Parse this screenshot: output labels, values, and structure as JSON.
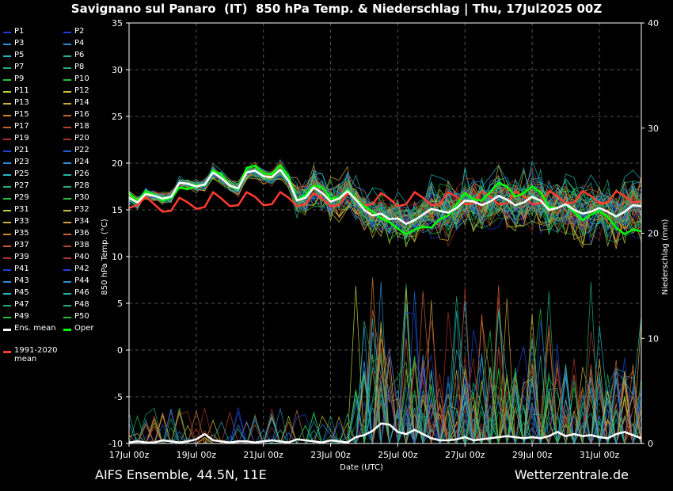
{
  "title": "Savignano sul Panaro  (IT)  850 hPa Temp. & Niederschlag | Thu, 17Jul2025 00Z",
  "footer": {
    "left": "AIFS Ensemble, 44.5N, 11E",
    "right": "Wetterzentrale.de"
  },
  "legend": {
    "members": [
      {
        "label": "P1",
        "color": "#1f3fd6"
      },
      {
        "label": "P2",
        "color": "#1f3fd6"
      },
      {
        "label": "P3",
        "color": "#2a8fd8"
      },
      {
        "label": "P4",
        "color": "#2a8fd8"
      },
      {
        "label": "P5",
        "color": "#1fb6c8"
      },
      {
        "label": "P6",
        "color": "#1fb6a0"
      },
      {
        "label": "P7",
        "color": "#1fae7a"
      },
      {
        "label": "P8",
        "color": "#1fae7a"
      },
      {
        "label": "P9",
        "color": "#1fc23a"
      },
      {
        "label": "P10",
        "color": "#1fc23a"
      },
      {
        "label": "P11",
        "color": "#b8d23a"
      },
      {
        "label": "P12",
        "color": "#d2c23a"
      },
      {
        "label": "P13",
        "color": "#d2b23a"
      },
      {
        "label": "P14",
        "color": "#d2a23a"
      },
      {
        "label": "P15",
        "color": "#d6822a"
      },
      {
        "label": "P16",
        "color": "#c8623a"
      },
      {
        "label": "P17",
        "color": "#c8622a"
      },
      {
        "label": "P18",
        "color": "#b8422a"
      },
      {
        "label": "P19",
        "color": "#a8322a"
      },
      {
        "label": "P20",
        "color": "#a8322a"
      },
      {
        "label": "P21",
        "color": "#1f3fd6"
      },
      {
        "label": "P22",
        "color": "#1f5fd6"
      },
      {
        "label": "P23",
        "color": "#2a8fd8"
      },
      {
        "label": "P24",
        "color": "#2a8fd8"
      },
      {
        "label": "P25",
        "color": "#1fb6c8"
      },
      {
        "label": "P26",
        "color": "#1fb6a0"
      },
      {
        "label": "P27",
        "color": "#1fae7a"
      },
      {
        "label": "P28",
        "color": "#1fae7a"
      },
      {
        "label": "P29",
        "color": "#1fc23a"
      },
      {
        "label": "P30",
        "color": "#1fc23a"
      },
      {
        "label": "P31",
        "color": "#b8d23a"
      },
      {
        "label": "P32",
        "color": "#d2c23a"
      },
      {
        "label": "P33",
        "color": "#d2b23a"
      },
      {
        "label": "P34",
        "color": "#d2a23a"
      },
      {
        "label": "P35",
        "color": "#d6822a"
      },
      {
        "label": "P36",
        "color": "#c8623a"
      },
      {
        "label": "P37",
        "color": "#c8622a"
      },
      {
        "label": "P38",
        "color": "#b8422a"
      },
      {
        "label": "P39",
        "color": "#a8322a"
      },
      {
        "label": "P40",
        "color": "#a8322a"
      },
      {
        "label": "P41",
        "color": "#1f3fd6"
      },
      {
        "label": "P42",
        "color": "#1f3fd6"
      },
      {
        "label": "P43",
        "color": "#2a8fd8"
      },
      {
        "label": "P44",
        "color": "#2a8fd8"
      },
      {
        "label": "P45",
        "color": "#1fb6c8"
      },
      {
        "label": "P46",
        "color": "#1fb6a0"
      },
      {
        "label": "P47",
        "color": "#1fae7a"
      },
      {
        "label": "P48",
        "color": "#1fae7a"
      },
      {
        "label": "P49",
        "color": "#1fc23a"
      },
      {
        "label": "P50",
        "color": "#1fc23a"
      }
    ],
    "ens_mean": {
      "label": "Ens. mean",
      "color": "#ffffff"
    },
    "oper": {
      "label": "Oper",
      "color": "#00ff00"
    },
    "clim": {
      "label": "1991-2020 mean",
      "color": "#ff3b30"
    }
  },
  "chart_data": {
    "type": "line",
    "xlabel": "Date (UTC)",
    "ylabel": "850 hPa Temp. (°C)",
    "y2label": "Niederschlag (mm)",
    "xlim": [
      "2025-07-17 00Z",
      "2025-08-01 06Z"
    ],
    "x_ticks": [
      "17Jul 00z",
      "19Jul 00z",
      "21Jul 00z",
      "23Jul 00z",
      "25Jul 00z",
      "27Jul 00z",
      "29Jul 00z",
      "31Jul 00z"
    ],
    "ylim": [
      -10,
      35
    ],
    "y_ticks": [
      -10,
      -5,
      0,
      5,
      10,
      15,
      20,
      25,
      30,
      35
    ],
    "y2lim": [
      0,
      40
    ],
    "y2_ticks": [
      0,
      10,
      20,
      30,
      40
    ],
    "grid": true,
    "step_hours": 6,
    "climatology": [
      15.2,
      15.5,
      16.4,
      15.6,
      14.8,
      14.9,
      16.3,
      15.8,
      15.1,
      15.3,
      16.9,
      16.2,
      15.4,
      15.5,
      16.9,
      16.4,
      15.5,
      15.6,
      16.9,
      16.3,
      15.4,
      15.6,
      16.8,
      16.2,
      15.4,
      15.5,
      16.8,
      16.3,
      15.5,
      15.6,
      16.8,
      16.2,
      15.4,
      15.6,
      16.9,
      16.3,
      15.5,
      15.6,
      16.9,
      16.4,
      15.6,
      15.7,
      17.0,
      16.4,
      15.6,
      15.7,
      17.0,
      16.4,
      15.6,
      15.7,
      17.0,
      16.5,
      15.7,
      15.8,
      17.0,
      16.5,
      15.7,
      15.8,
      17.0,
      16.5,
      15.8,
      15.9
    ],
    "ens_mean_temp": [
      16.3,
      15.8,
      16.7,
      16.5,
      16.2,
      16.4,
      17.9,
      17.8,
      17.5,
      17.7,
      19.0,
      18.4,
      17.6,
      17.3,
      19.0,
      19.2,
      18.6,
      18.5,
      19.3,
      18.1,
      16.0,
      16.3,
      17.4,
      16.8,
      15.9,
      16.2,
      17.0,
      16.1,
      15.0,
      14.4,
      14.6,
      14.0,
      14.1,
      13.5,
      13.9,
      14.5,
      15.1,
      14.9,
      14.7,
      15.2,
      16.0,
      15.9,
      15.5,
      15.9,
      16.5,
      16.1,
      15.5,
      15.8,
      16.4,
      16.0,
      15.0,
      15.2,
      15.6,
      15.0,
      14.6,
      14.8,
      15.2,
      14.8,
      14.3,
      14.8,
      15.5,
      15.4
    ],
    "oper_temp": [
      16.8,
      15.9,
      17.0,
      16.6,
      16.0,
      16.3,
      17.4,
      17.2,
      17.6,
      17.6,
      19.2,
      18.8,
      17.5,
      17.2,
      19.5,
      19.7,
      18.9,
      18.8,
      19.8,
      18.6,
      16.0,
      16.6,
      17.6,
      17.4,
      16.2,
      16.3,
      17.1,
      16.2,
      15.4,
      14.8,
      14.1,
      13.7,
      13.0,
      12.4,
      12.9,
      13.2,
      13.1,
      14.0,
      14.4,
      15.6,
      16.8,
      16.1,
      16.0,
      16.9,
      17.9,
      17.5,
      16.4,
      16.8,
      17.5,
      16.9,
      15.3,
      15.2,
      15.6,
      14.8,
      13.9,
      14.5,
      14.9,
      14.2,
      13.1,
      12.4,
      12.9,
      12.7
    ],
    "ens_mean_precip": [
      0.1,
      0.2,
      0.1,
      0.1,
      0.3,
      0.2,
      0.1,
      0.2,
      0.4,
      0.9,
      0.3,
      0.2,
      0.1,
      0.2,
      0.2,
      0.1,
      0.2,
      0.3,
      0.2,
      0.1,
      0.4,
      0.3,
      0.2,
      0.1,
      0.3,
      0.2,
      0.1,
      0.6,
      0.8,
      1.2,
      1.9,
      1.8,
      1.1,
      0.9,
      1.3,
      0.9,
      0.5,
      0.3,
      0.3,
      0.4,
      0.6,
      0.3,
      0.4,
      0.5,
      0.6,
      0.7,
      0.6,
      0.5,
      0.6,
      0.5,
      0.7,
      1.1,
      0.7,
      0.9,
      0.7,
      0.8,
      0.6,
      0.5,
      0.9,
      1.1,
      0.8,
      0.5
    ],
    "members_temp_range": [
      10,
      22.5
    ],
    "members_precip_max": 14
  }
}
